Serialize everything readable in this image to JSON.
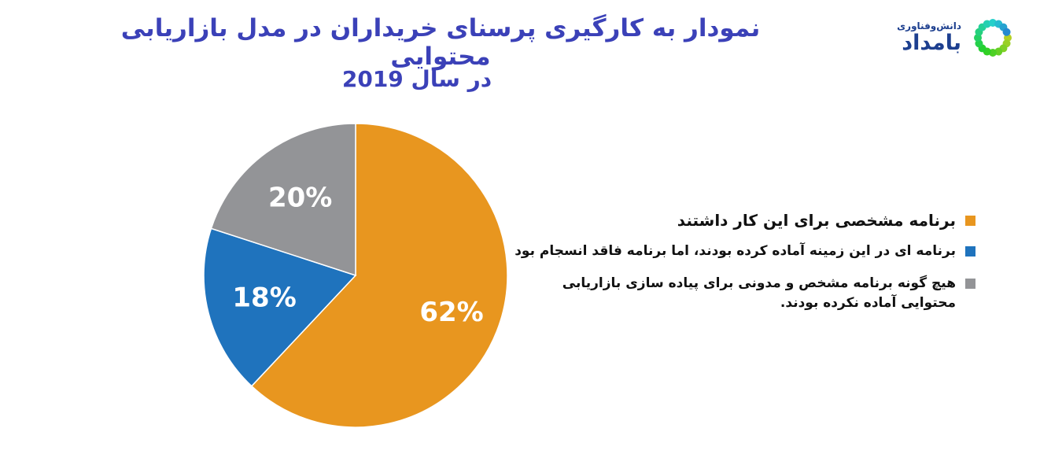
{
  "logo": {
    "line1": "دانش‌وفناوری",
    "line2": "بامداد"
  },
  "chart_data": {
    "type": "pie",
    "title": "نمودار به کارگیری پرسنای خریداران در مدل بازاریابی محتوایی",
    "subtitle": "در سال 2019",
    "slices": [
      {
        "name": "برنامه مشخصی برای این کار داشتند",
        "value": 62,
        "label": "62%",
        "color": "#e8961f"
      },
      {
        "name": "برنامه ای در این زمینه آماده کرده بودند، اما برنامه فاقد انسجام بود",
        "value": 18,
        "label": "18%",
        "color": "#1f73bd"
      },
      {
        "name": "هیچ گونه برنامه مشخص و مدونی برای پیاده سازی بازاریابی محتوایی آماده نکرده بودند.",
        "value": 20,
        "label": "20%",
        "color": "#939497"
      }
    ],
    "legend_position": "right"
  }
}
